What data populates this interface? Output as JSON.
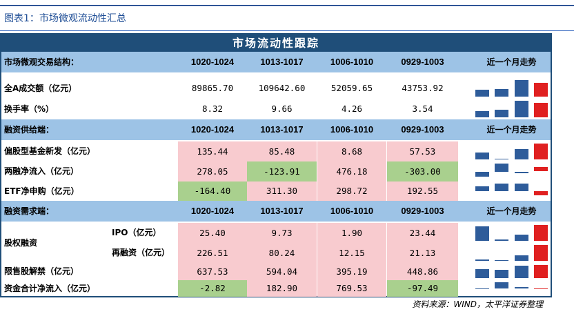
{
  "figure_caption": "图表1：市场微观流动性汇总",
  "table_title": "市场流动性跟踪",
  "source": "资料来源：WIND，太平洋证券整理",
  "colors": {
    "header_band": "#9dc3e6",
    "title_bar": "#1f4e79",
    "positive_cell": "#f8cbcf",
    "negative_cell": "#a9d08e",
    "bar_blue": "#2e5c9a",
    "bar_red": "#e02020"
  },
  "sections": [
    {
      "header": "市场微观交易结构：",
      "columns": [
        "1020-1024",
        "1013-1017",
        "1006-1010",
        "0929-1003"
      ],
      "trend_header": "近一个月走势",
      "rows": [
        {
          "label": "全A成交额（亿元）",
          "values": [
            "89865.70",
            "109642.60",
            "52059.65",
            "43753.92"
          ],
          "fills": [
            "white",
            "white",
            "white",
            "white"
          ],
          "trend": [
            43753.92,
            52059.65,
            109642.6,
            89865.7
          ]
        },
        {
          "label": "换手率（%）",
          "values": [
            "8.32",
            "9.66",
            "4.26",
            "3.54"
          ],
          "fills": [
            "white",
            "white",
            "white",
            "white"
          ],
          "trend": [
            3.54,
            4.26,
            9.66,
            8.32
          ]
        }
      ]
    },
    {
      "header": "融资供给端：",
      "columns": [
        "1020-1024",
        "1013-1017",
        "1006-1010",
        "0929-1003"
      ],
      "trend_header": "近一个月走势",
      "rows": [
        {
          "label": "偏股型基金新发（亿元）",
          "values": [
            "135.44",
            "85.48",
            "8.68",
            "57.53"
          ],
          "fills": [
            "pink",
            "pink",
            "pink",
            "pink"
          ],
          "trend": [
            57.53,
            8.68,
            85.48,
            135.44
          ]
        },
        {
          "label": "两融净流入（亿元）",
          "values": [
            "278.05",
            "-123.91",
            "476.18",
            "-303.00"
          ],
          "fills": [
            "pink",
            "green",
            "pink",
            "green"
          ],
          "trend": [
            -303.0,
            476.18,
            -123.91,
            278.05
          ]
        },
        {
          "label": "ETF净申购（亿元）",
          "values": [
            "-164.40",
            "311.30",
            "298.72",
            "192.55"
          ],
          "fills": [
            "green",
            "pink",
            "pink",
            "pink"
          ],
          "trend": [
            192.55,
            298.72,
            311.3,
            -164.4
          ]
        }
      ]
    },
    {
      "header": "融资需求端：",
      "columns": [
        "1020-1024",
        "1013-1017",
        "1006-1010",
        "0929-1003"
      ],
      "trend_header": "近一个月走势",
      "group_label": "股权融资",
      "rows": [
        {
          "label": "IPO（亿元）",
          "sub": true,
          "values": [
            "25.40",
            "9.73",
            "1.90",
            "23.44"
          ],
          "fills": [
            "pink",
            "pink",
            "pink",
            "pink"
          ],
          "trend": [
            23.44,
            1.9,
            9.73,
            25.4
          ]
        },
        {
          "label": "再融资（亿元）",
          "sub": true,
          "values": [
            "226.51",
            "80.24",
            "12.15",
            "21.13"
          ],
          "fills": [
            "pink",
            "pink",
            "pink",
            "pink"
          ],
          "trend": [
            21.13,
            12.15,
            80.24,
            226.51
          ]
        },
        {
          "label": "限售股解禁（亿元）",
          "values": [
            "637.53",
            "594.04",
            "395.19",
            "448.86"
          ],
          "fills": [
            "pink",
            "pink",
            "pink",
            "pink"
          ],
          "trend": [
            448.86,
            395.19,
            594.04,
            637.53
          ]
        },
        {
          "label": "资金合计净流入（亿元）",
          "values": [
            "-2.82",
            "182.90",
            "769.53",
            "-97.49"
          ],
          "fills": [
            "green",
            "pink",
            "pink",
            "green"
          ],
          "trend": [
            -97.49,
            769.53,
            182.9,
            -2.82
          ]
        }
      ]
    }
  ]
}
